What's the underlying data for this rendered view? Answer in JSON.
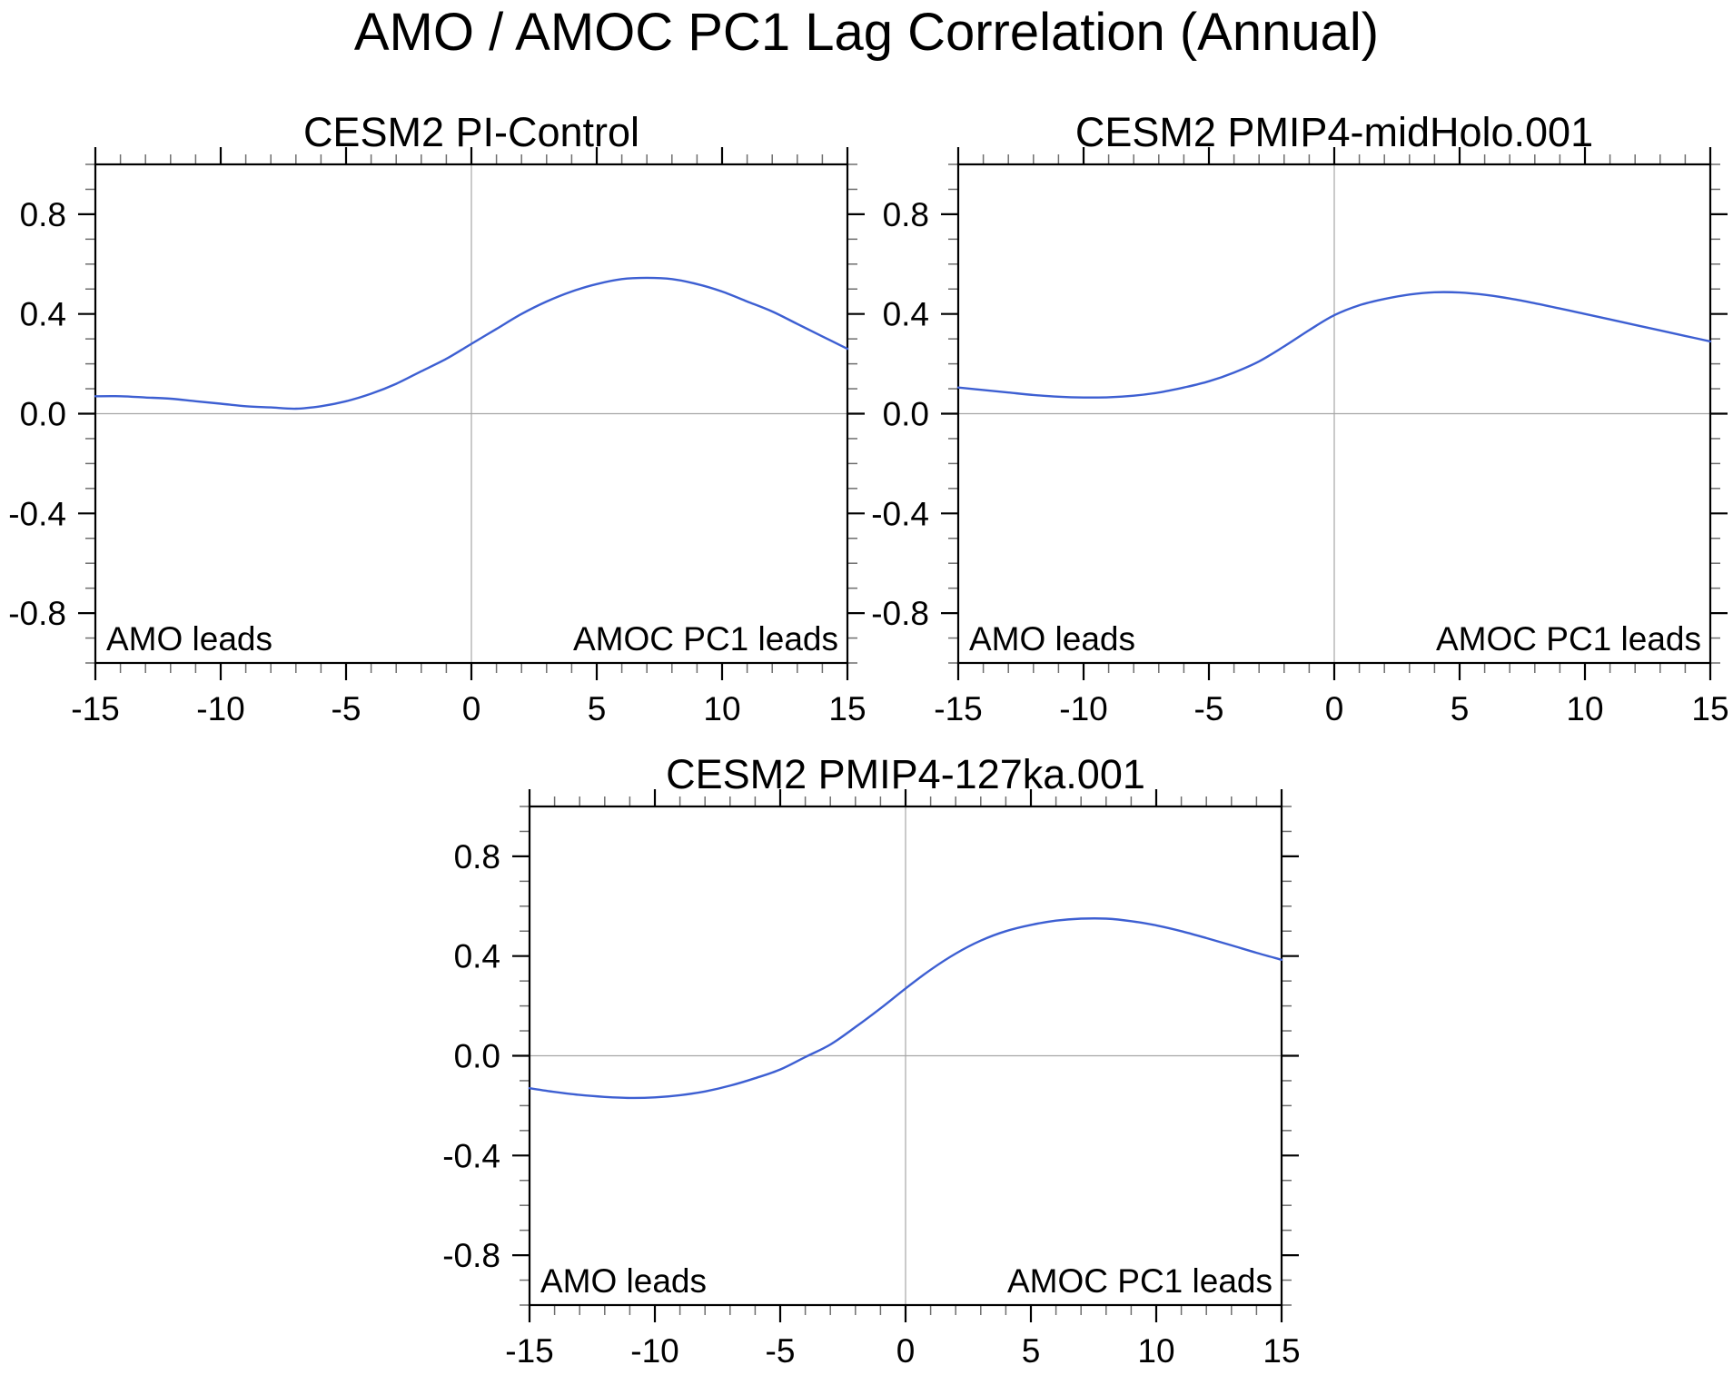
{
  "figure": {
    "title": "AMO / AMOC PC1 Lag Correlation (Annual)"
  },
  "colors": {
    "line": "#3D5FD2",
    "grid": "#A6A6A6",
    "axis": "#000000",
    "minor_tick": "#6E6E6E",
    "background": "#FFFFFF"
  },
  "chart_data": [
    {
      "type": "line",
      "title": "CESM2 PI-Control",
      "xlabel": "",
      "ylabel": "",
      "xlim": [
        -15,
        15
      ],
      "ylim": [
        -1,
        1
      ],
      "xticks": [
        -15,
        -10,
        -5,
        0,
        5,
        10,
        15
      ],
      "yticks": [
        -0.8,
        -0.4,
        0.0,
        0.4,
        0.8
      ],
      "x_minor_step": 1,
      "y_minor_step": 0.1,
      "grid": "zero-lines-only",
      "left_label": "AMO leads",
      "right_label": "AMOC PC1 leads",
      "x": [
        -15,
        -14,
        -13,
        -12,
        -11,
        -10,
        -9,
        -8,
        -7,
        -6,
        -5,
        -4,
        -3,
        -2,
        -1,
        0,
        1,
        2,
        3,
        4,
        5,
        6,
        7,
        8,
        9,
        10,
        11,
        12,
        13,
        14,
        15
      ],
      "series": [
        {
          "name": "AMO / AMOC PC1 lag correlation",
          "values": [
            0.07,
            0.07,
            0.065,
            0.06,
            0.05,
            0.04,
            0.03,
            0.025,
            0.02,
            0.03,
            0.05,
            0.08,
            0.12,
            0.17,
            0.22,
            0.28,
            0.34,
            0.4,
            0.45,
            0.49,
            0.52,
            0.54,
            0.545,
            0.54,
            0.52,
            0.49,
            0.45,
            0.41,
            0.36,
            0.31,
            0.26
          ]
        }
      ]
    },
    {
      "type": "line",
      "title": "CESM2 PMIP4-midHolo.001",
      "xlabel": "",
      "ylabel": "",
      "xlim": [
        -15,
        15
      ],
      "ylim": [
        -1,
        1
      ],
      "xticks": [
        -15,
        -10,
        -5,
        0,
        5,
        10,
        15
      ],
      "yticks": [
        -0.8,
        -0.4,
        0.0,
        0.4,
        0.8
      ],
      "x_minor_step": 1,
      "y_minor_step": 0.1,
      "grid": "zero-lines-only",
      "left_label": "AMO leads",
      "right_label": "AMOC PC1 leads",
      "x": [
        -15,
        -14,
        -13,
        -12,
        -11,
        -10,
        -9,
        -8,
        -7,
        -6,
        -5,
        -4,
        -3,
        -2,
        -1,
        0,
        1,
        2,
        3,
        4,
        5,
        6,
        7,
        8,
        9,
        10,
        11,
        12,
        13,
        14,
        15
      ],
      "series": [
        {
          "name": "AMO / AMOC PC1 lag correlation",
          "values": [
            0.105,
            0.095,
            0.085,
            0.075,
            0.068,
            0.065,
            0.066,
            0.072,
            0.085,
            0.105,
            0.13,
            0.165,
            0.21,
            0.27,
            0.335,
            0.395,
            0.435,
            0.46,
            0.478,
            0.487,
            0.486,
            0.477,
            0.462,
            0.443,
            0.422,
            0.4,
            0.378,
            0.356,
            0.334,
            0.312,
            0.29
          ]
        }
      ]
    },
    {
      "type": "line",
      "title": "CESM2 PMIP4-127ka.001",
      "xlabel": "",
      "ylabel": "",
      "xlim": [
        -15,
        15
      ],
      "ylim": [
        -1,
        1
      ],
      "xticks": [
        -15,
        -10,
        -5,
        0,
        5,
        10,
        15
      ],
      "yticks": [
        -0.8,
        -0.4,
        0.0,
        0.4,
        0.8
      ],
      "x_minor_step": 1,
      "y_minor_step": 0.1,
      "grid": "zero-lines-only",
      "left_label": "AMO leads",
      "right_label": "AMOC PC1 leads",
      "x": [
        -15,
        -14,
        -13,
        -12,
        -11,
        -10,
        -9,
        -8,
        -7,
        -6,
        -5,
        -4,
        -3,
        -2,
        -1,
        0,
        1,
        2,
        3,
        4,
        5,
        6,
        7,
        8,
        9,
        10,
        11,
        12,
        13,
        14,
        15
      ],
      "series": [
        {
          "name": "AMO / AMOC PC1 lag correlation",
          "values": [
            -0.13,
            -0.145,
            -0.157,
            -0.165,
            -0.169,
            -0.167,
            -0.158,
            -0.143,
            -0.12,
            -0.09,
            -0.055,
            -0.005,
            0.045,
            0.115,
            0.19,
            0.27,
            0.345,
            0.41,
            0.462,
            0.5,
            0.525,
            0.542,
            0.55,
            0.55,
            0.54,
            0.523,
            0.5,
            0.472,
            0.443,
            0.413,
            0.385
          ]
        }
      ]
    }
  ]
}
